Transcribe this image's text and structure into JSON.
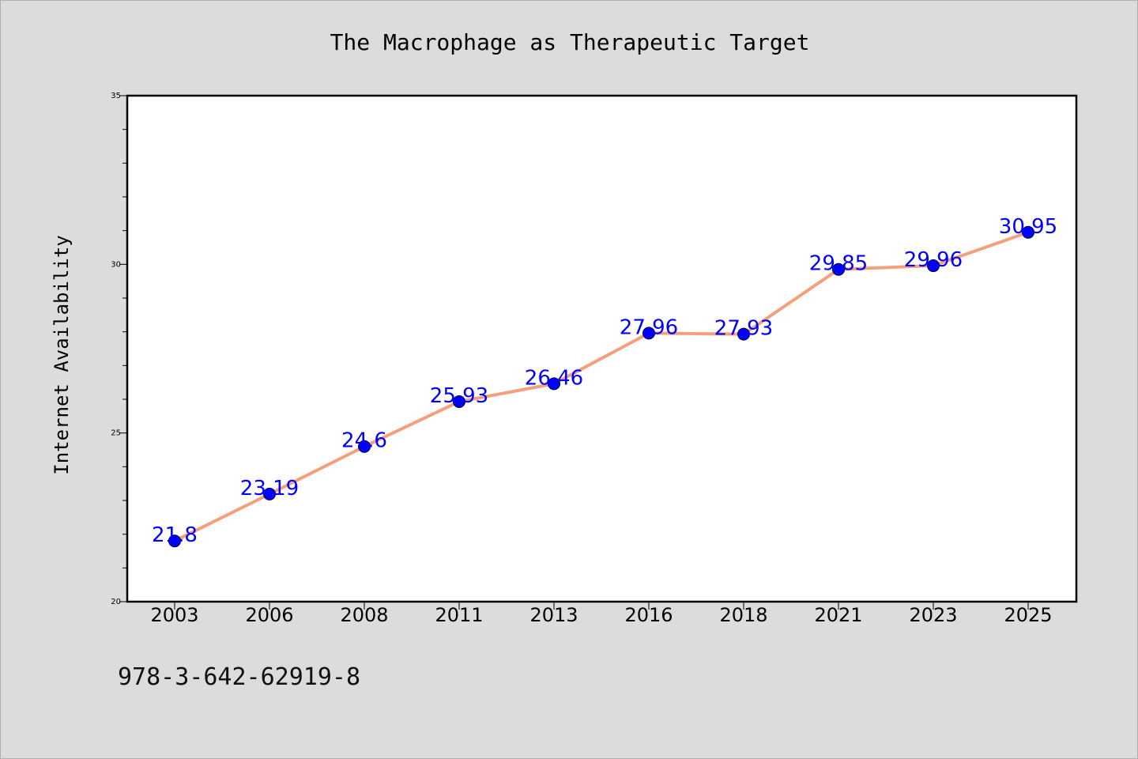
{
  "chart_data": {
    "type": "line",
    "title": "The Macrophage as Therapeutic Target",
    "xlabel": "",
    "ylabel": "Internet Availability",
    "categories": [
      "2003",
      "2006",
      "2008",
      "2011",
      "2013",
      "2016",
      "2018",
      "2021",
      "2023",
      "2025"
    ],
    "series": [
      {
        "values": [
          21.8,
          23.19,
          24.6,
          25.93,
          26.46,
          27.96,
          27.93,
          29.85,
          29.96,
          30.95
        ]
      }
    ],
    "data_labels": [
      "21.8",
      "23.19",
      "24.6",
      "25.93",
      "26.46",
      "27.96",
      "27.93",
      "29.85",
      "29.96",
      "30.95"
    ],
    "ylim": [
      20,
      35
    ],
    "yticks": [
      20,
      25,
      30,
      35
    ],
    "grid": false,
    "legend": "none",
    "colors": {
      "line": "#f4a07c",
      "marker": "#0000ff",
      "label": "#0000ff",
      "plot_background": "#ffffff",
      "figure_background": "#dcdcdc"
    }
  },
  "footer": {
    "isbn": "978-3-642-62919-8"
  }
}
